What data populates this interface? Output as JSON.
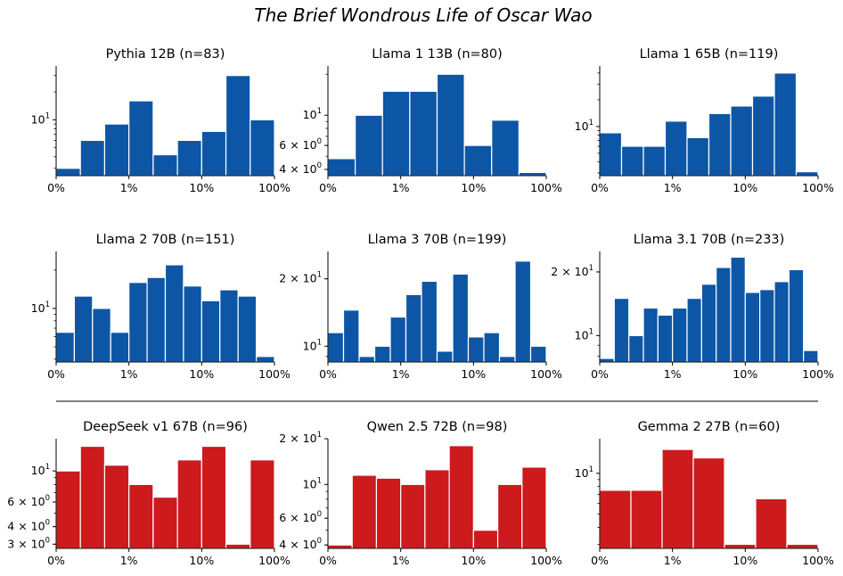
{
  "title": "The Brief Wondrous Life of Oscar Wao",
  "colors": {
    "group_a": "#0d56a6",
    "group_b": "#cc1a1d"
  },
  "x_tick_labels": [
    "0%",
    "1%",
    "10%",
    "100%"
  ],
  "chart_data": [
    {
      "type": "bar",
      "title": "Pythia 12B (n=83)",
      "color": "#0d56a6",
      "yscale": "log",
      "ylim": [
        2.5,
        38
      ],
      "yticks": [
        {
          "value": 10,
          "base": "10",
          "exp": "1"
        }
      ],
      "values": [
        3,
        6,
        9,
        16,
        4.2,
        6,
        7.5,
        30,
        10
      ]
    },
    {
      "type": "bar",
      "title": "Llama 1 13B (n=80)",
      "color": "#0d56a6",
      "yscale": "log",
      "ylim": [
        3.6,
        23
      ],
      "yticks": [
        {
          "value": 10,
          "base": "10",
          "exp": "1"
        },
        {
          "value": 6,
          "base": "6 × 10",
          "exp": "0"
        },
        {
          "value": 4,
          "base": "4 × 10",
          "exp": "0"
        }
      ],
      "values": [
        4.8,
        10,
        15,
        15,
        20,
        6,
        9.2,
        3.8
      ]
    },
    {
      "type": "bar",
      "title": "Llama 1 65B (n=119)",
      "color": "#0d56a6",
      "yscale": "log",
      "ylim": [
        2.8,
        48
      ],
      "yticks": [
        {
          "value": 10,
          "base": "10",
          "exp": "1"
        }
      ],
      "values": [
        8.5,
        6,
        6,
        11.5,
        7.5,
        14,
        17,
        22,
        40,
        3.1
      ]
    },
    {
      "type": "bar",
      "title": "Llama 2 70B (n=151)",
      "color": "#0d56a6",
      "yscale": "log",
      "ylim": [
        3.8,
        28
      ],
      "yticks": [
        {
          "value": 10,
          "base": "10",
          "exp": "1"
        }
      ],
      "values": [
        6.5,
        12.5,
        10,
        6.5,
        16,
        17.5,
        22,
        15,
        11.5,
        14,
        12.5,
        4.2
      ]
    },
    {
      "type": "bar",
      "title": "Llama 3 70B (n=199)",
      "color": "#0d56a6",
      "yscale": "log",
      "ylim": [
        8.5,
        26.5
      ],
      "yticks": [
        {
          "value": 20,
          "base": "2 × 10",
          "exp": "1"
        },
        {
          "value": 10,
          "base": "10",
          "exp": "1"
        }
      ],
      "values": [
        11.5,
        14.5,
        9,
        10,
        13.5,
        17,
        19.5,
        9.5,
        21,
        11,
        11.5,
        9,
        24,
        10
      ]
    },
    {
      "type": "bar",
      "title": "Llama 3.1 70B (n=233)",
      "color": "#0d56a6",
      "yscale": "log",
      "ylim": [
        7.5,
        25
      ],
      "yticks": [
        {
          "value": 20,
          "base": "2 × 10",
          "exp": "1"
        },
        {
          "value": 10,
          "base": "10",
          "exp": "1"
        }
      ],
      "values": [
        7.8,
        15,
        10,
        13.5,
        12.5,
        13.5,
        15,
        17.5,
        21,
        23.5,
        16,
        16.5,
        18,
        20.5,
        8.5
      ]
    },
    {
      "type": "bar",
      "title": "DeepSeek v1 67B (n=96)",
      "color": "#cc1a1d",
      "yscale": "log",
      "ylim": [
        2.8,
        17
      ],
      "yticks": [
        {
          "value": 10,
          "base": "10",
          "exp": "1"
        },
        {
          "value": 6,
          "base": "6 × 10",
          "exp": "0"
        },
        {
          "value": 4,
          "base": "4 × 10",
          "exp": "0"
        },
        {
          "value": 3,
          "base": "3 × 10",
          "exp": "0"
        }
      ],
      "values": [
        10,
        15,
        11,
        8,
        6.5,
        12,
        15,
        3,
        12
      ]
    },
    {
      "type": "bar",
      "title": "Qwen 2.5 72B (n=98)",
      "color": "#cc1a1d",
      "yscale": "log",
      "ylim": [
        3.8,
        20
      ],
      "yticks": [
        {
          "value": 20,
          "base": "2 × 10",
          "exp": "1"
        },
        {
          "value": 10,
          "base": "10",
          "exp": "1"
        },
        {
          "value": 6,
          "base": "6 × 10",
          "exp": "0"
        },
        {
          "value": 4,
          "base": "4 × 10",
          "exp": "0"
        }
      ],
      "values": [
        4,
        11.5,
        11,
        10,
        12.5,
        18,
        5,
        10,
        13
      ]
    },
    {
      "type": "bar",
      "title": "Gemma 2 27B (n=60)",
      "color": "#cc1a1d",
      "yscale": "log",
      "ylim": [
        2.8,
        18
      ],
      "yticks": [
        {
          "value": 10,
          "base": "10",
          "exp": "1"
        }
      ],
      "values": [
        7.5,
        7.5,
        15,
        13,
        3,
        6.5,
        3
      ]
    }
  ]
}
